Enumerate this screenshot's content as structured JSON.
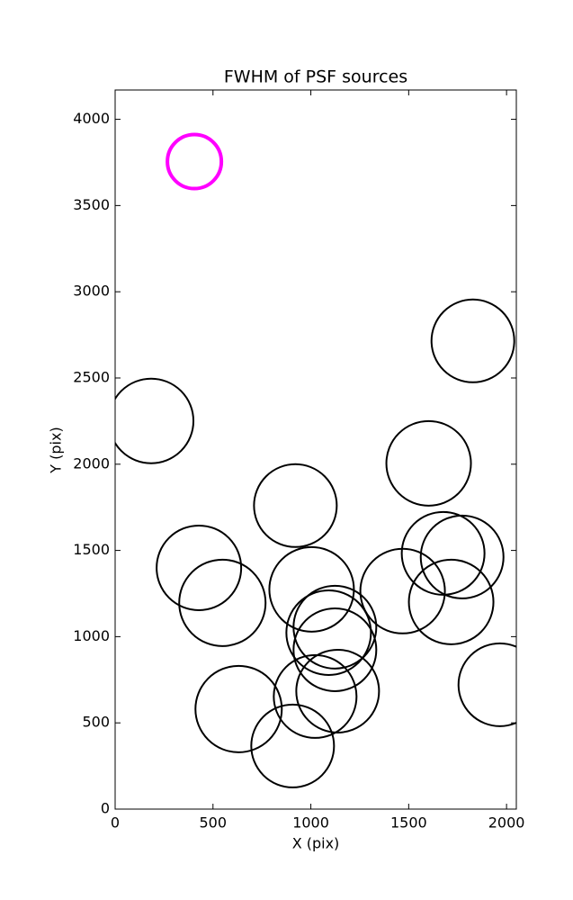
{
  "chart_data": {
    "type": "scatter",
    "title": "FWHM of PSF sources",
    "x_label": "X (pix)",
    "y_label": "Y (pix)",
    "xlim": [
      0,
      2050
    ],
    "ylim": [
      0,
      4170
    ],
    "xticks": [
      0,
      500,
      1000,
      1500,
      2000
    ],
    "yticks": [
      0,
      500,
      1000,
      1500,
      2000,
      2500,
      3000,
      3500,
      4000
    ],
    "series": [
      {
        "color": "#000000",
        "linewidth": 2,
        "x": [
          184,
          1828,
          1602,
          921,
          428,
          548,
          1004,
          1469,
          1676,
          1773,
          1717,
          1123,
          1091,
          1123,
          1137,
          1022,
          1966,
          631,
          907
        ],
        "values": [
          2251,
          2715,
          2005,
          1760,
          1399,
          1196,
          1274,
          1264,
          1483,
          1462,
          1201,
          1055,
          1023,
          924,
          684,
          653,
          721,
          580,
          366
        ],
        "sizes": [
          47,
          46,
          47,
          46,
          47,
          48,
          47,
          47,
          46,
          46,
          47,
          46,
          47,
          46,
          46,
          46,
          46,
          48,
          46
        ]
      },
      {
        "color": "#ff00ff",
        "linewidth": 4,
        "x": [
          405
        ],
        "values": [
          3755
        ],
        "sizes": [
          30
        ]
      }
    ]
  }
}
